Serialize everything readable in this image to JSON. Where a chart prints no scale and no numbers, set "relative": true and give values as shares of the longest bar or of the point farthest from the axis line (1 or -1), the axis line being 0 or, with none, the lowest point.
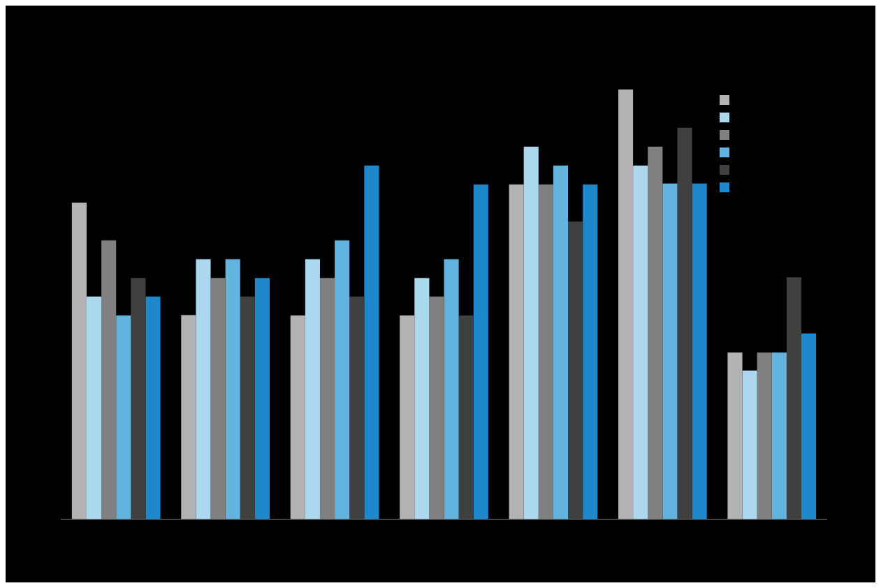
{
  "chart_data": {
    "type": "bar",
    "relative": true,
    "categories": [
      null,
      null,
      null,
      null,
      null,
      null,
      null
    ],
    "series": [
      {
        "color": "#b3b3b3",
        "values": [
          0.737,
          0.475,
          0.474,
          0.474,
          0.779,
          1,
          0.388
        ]
      },
      {
        "color": "#acd8ef",
        "values": [
          0.518,
          0.605,
          0.605,
          0.561,
          0.867,
          0.823,
          0.346
        ]
      },
      {
        "color": "#808080",
        "values": [
          0.649,
          0.561,
          0.561,
          0.518,
          0.779,
          0.867,
          0.388
        ]
      },
      {
        "color": "#62b4de",
        "values": [
          0.474,
          0.605,
          0.649,
          0.605,
          0.823,
          0.781,
          0.388
        ]
      },
      {
        "color": "#404040",
        "values": [
          0.561,
          0.518,
          0.518,
          0.474,
          0.693,
          0.911,
          0.563
        ]
      },
      {
        "color": "#1e88cc",
        "values": [
          0.518,
          0.561,
          0.823,
          0.779,
          0.779,
          0.781,
          0.432
        ]
      }
    ]
  }
}
